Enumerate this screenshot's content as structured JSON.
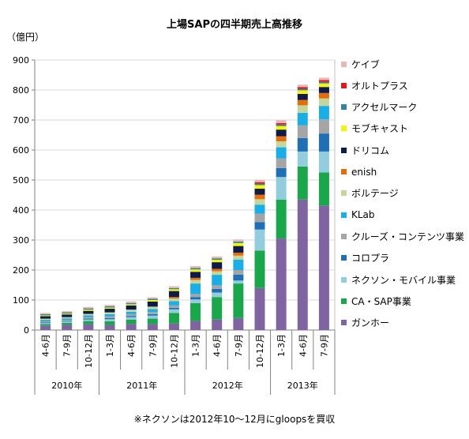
{
  "chart_data": {
    "type": "bar",
    "stacked": true,
    "title": "上場SAPの四半期売上高推移",
    "ylabel": "（億円）",
    "note": "※ネクソンは2012年10～12月にgloopsを買収",
    "ylim": [
      0,
      900
    ],
    "yticks": [
      0,
      100,
      200,
      300,
      400,
      500,
      600,
      700,
      800,
      900
    ],
    "grid": true,
    "legend_position": "right",
    "categories": [
      "4-6月",
      "7-9月",
      "10-12月",
      "1-3月",
      "4-6月",
      "7-9月",
      "10-12月",
      "1-3月",
      "4-6月",
      "7-9月",
      "10-12月",
      "1-3月",
      "4-6月",
      "7-9月"
    ],
    "groups": [
      {
        "label": "2010年",
        "count": 3
      },
      {
        "label": "2011年",
        "count": 4
      },
      {
        "label": "2012年",
        "count": 4
      },
      {
        "label": "2013年",
        "count": 3
      }
    ],
    "series": [
      {
        "name": "ガンホー",
        "color": "#8064a2",
        "values": [
          15,
          17,
          20,
          17,
          20,
          20,
          22,
          30,
          35,
          40,
          140,
          305,
          435,
          415
        ]
      },
      {
        "name": "CA・SAP事業",
        "color": "#1aa64a",
        "values": [
          5,
          7,
          10,
          12,
          15,
          18,
          35,
          60,
          75,
          115,
          125,
          130,
          110,
          110
        ]
      },
      {
        "name": "ネクソン・モバイル事業",
        "color": "#93cddd",
        "values": [
          3,
          4,
          5,
          7,
          8,
          10,
          12,
          12,
          15,
          10,
          70,
          75,
          50,
          70
        ]
      },
      {
        "name": "コロプラ",
        "color": "#1f6fb7",
        "values": [
          2,
          2,
          3,
          4,
          4,
          5,
          5,
          8,
          12,
          20,
          25,
          30,
          45,
          60
        ]
      },
      {
        "name": "クルーズ・コンテンツ事業",
        "color": "#a5a5a5",
        "values": [
          4,
          4,
          5,
          6,
          6,
          7,
          8,
          10,
          12,
          15,
          28,
          32,
          42,
          47
        ]
      },
      {
        "name": "KLab",
        "color": "#1aaee8",
        "values": [
          5,
          5,
          6,
          7,
          8,
          10,
          14,
          35,
          35,
          35,
          30,
          37,
          42,
          45
        ]
      },
      {
        "name": "ボルテージ",
        "color": "#c3d69b",
        "values": [
          4,
          4,
          5,
          6,
          7,
          8,
          9,
          12,
          12,
          13,
          18,
          20,
          25,
          25
        ]
      },
      {
        "name": "enish",
        "color": "#e46c0a",
        "values": [
          0,
          0,
          0,
          0,
          0,
          0,
          5,
          7,
          8,
          10,
          15,
          17,
          18,
          18
        ]
      },
      {
        "name": "ドリコム",
        "color": "#0d1a4a",
        "values": [
          8,
          9,
          10,
          12,
          14,
          17,
          20,
          20,
          22,
          22,
          20,
          22,
          20,
          20
        ]
      },
      {
        "name": "モブキャスト",
        "color": "#f5f500",
        "values": [
          3,
          3,
          4,
          4,
          4,
          5,
          6,
          8,
          8,
          10,
          12,
          12,
          12,
          12
        ]
      },
      {
        "name": "アクセルマーク",
        "color": "#31859c",
        "values": [
          4,
          4,
          4,
          4,
          4,
          4,
          4,
          5,
          5,
          5,
          5,
          5,
          5,
          5
        ]
      },
      {
        "name": "オルトプラス",
        "color": "#e8141c",
        "values": [
          0,
          0,
          0,
          0,
          0,
          0,
          0,
          0,
          0,
          0,
          5,
          5,
          6,
          6
        ]
      },
      {
        "name": "ケイブ",
        "color": "#e6b9b8",
        "values": [
          4,
          4,
          5,
          5,
          5,
          5,
          6,
          6,
          6,
          7,
          8,
          9,
          8,
          8
        ]
      }
    ]
  }
}
